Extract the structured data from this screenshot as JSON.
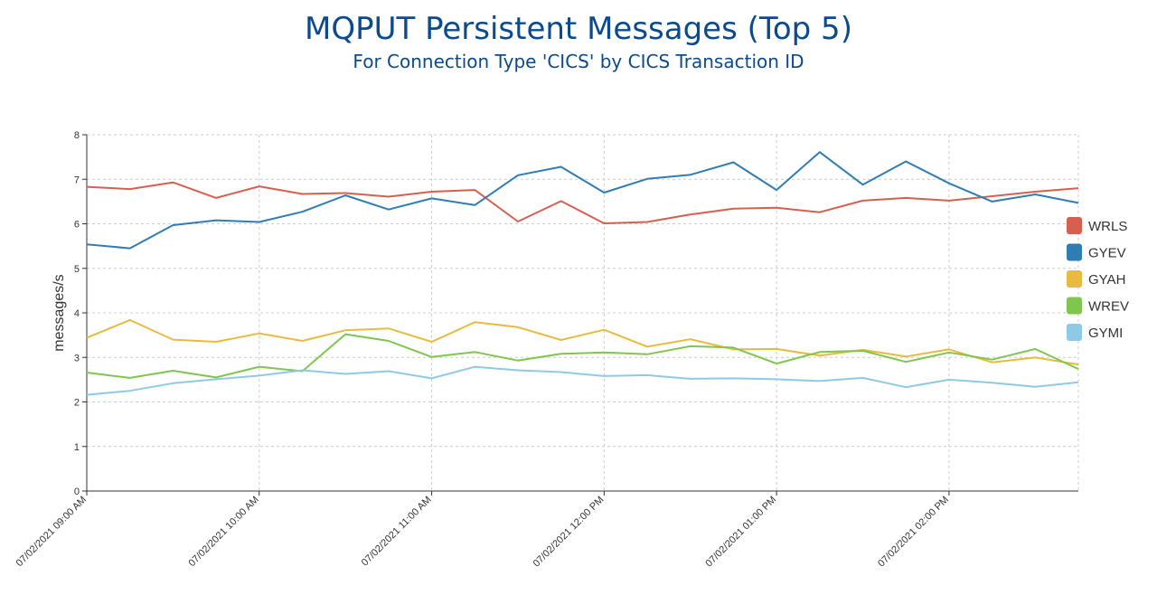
{
  "chart_data": {
    "type": "line",
    "title": "MQPUT Persistent Messages (Top 5)",
    "subtitle": "For Connection Type 'CICS' by CICS Transaction ID",
    "ylabel": "messages/s",
    "xlabel": "",
    "ylim": [
      0,
      8
    ],
    "yticks": [
      0,
      1,
      2,
      3,
      4,
      5,
      6,
      7,
      8
    ],
    "grid": true,
    "legend_position": "right",
    "x_tick_labels": [
      "07/02/2021 09:00 AM",
      "07/02/2021 10:00 AM",
      "07/02/2021 11:00 AM",
      "07/02/2021 12:00 PM",
      "07/02/2021 01:00 PM",
      "07/02/2021 02:00 PM"
    ],
    "x": [
      "09:00",
      "09:15",
      "09:30",
      "09:45",
      "10:00",
      "10:15",
      "10:30",
      "10:45",
      "11:00",
      "11:15",
      "11:30",
      "11:45",
      "12:00",
      "12:15",
      "12:30",
      "12:45",
      "13:00",
      "13:15",
      "13:30",
      "13:45",
      "14:00",
      "14:15",
      "14:30",
      "14:45"
    ],
    "series": [
      {
        "name": "WRLS",
        "color": "#d6604d",
        "values": [
          6.83,
          6.78,
          6.93,
          6.58,
          6.84,
          6.67,
          6.69,
          6.61,
          6.72,
          6.76,
          6.05,
          6.51,
          6.01,
          6.04,
          6.21,
          6.34,
          6.36,
          6.26,
          6.52,
          6.58,
          6.52,
          6.62,
          6.72,
          6.8
        ]
      },
      {
        "name": "GYEV",
        "color": "#2f7db4",
        "values": [
          5.54,
          5.45,
          5.97,
          6.08,
          6.04,
          6.27,
          6.64,
          6.32,
          6.57,
          6.42,
          7.09,
          7.28,
          6.7,
          7.01,
          7.1,
          7.38,
          6.76,
          7.61,
          6.88,
          7.4,
          6.91,
          6.5,
          6.66,
          6.47
        ]
      },
      {
        "name": "GYAH",
        "color": "#e8bb3f",
        "values": [
          3.44,
          3.84,
          3.4,
          3.35,
          3.54,
          3.37,
          3.61,
          3.65,
          3.35,
          3.79,
          3.68,
          3.39,
          3.62,
          3.24,
          3.41,
          3.18,
          3.19,
          3.04,
          3.17,
          3.02,
          3.18,
          2.89,
          3.0,
          2.84
        ]
      },
      {
        "name": "WREV",
        "color": "#7fc64f",
        "values": [
          2.66,
          2.54,
          2.7,
          2.55,
          2.79,
          2.69,
          3.52,
          3.37,
          3.01,
          3.12,
          2.93,
          3.08,
          3.11,
          3.07,
          3.25,
          3.22,
          2.86,
          3.12,
          3.15,
          2.9,
          3.11,
          2.95,
          3.19,
          2.74
        ]
      },
      {
        "name": "GYMI",
        "color": "#8ecae6",
        "values": [
          2.16,
          2.25,
          2.42,
          2.51,
          2.59,
          2.71,
          2.63,
          2.69,
          2.53,
          2.79,
          2.71,
          2.67,
          2.58,
          2.6,
          2.52,
          2.53,
          2.51,
          2.47,
          2.54,
          2.33,
          2.5,
          2.43,
          2.34,
          2.44
        ]
      }
    ]
  }
}
